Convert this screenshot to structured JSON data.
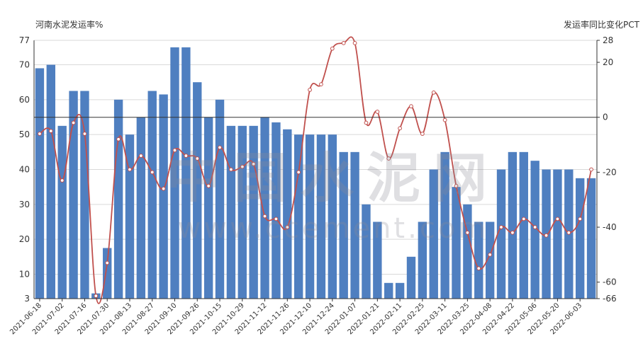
{
  "chart_data": {
    "type": "bar",
    "left_axis_title": "河南水泥发运率%",
    "right_axis_title": "发运率同比变化PCT",
    "watermark": "中国水泥网",
    "watermark_sub": "www.ccement.com",
    "y_left": {
      "min": 3,
      "max": 77,
      "ticks": [
        3,
        10,
        20,
        30,
        40,
        50,
        60,
        70,
        77
      ]
    },
    "y_right": {
      "min": -66,
      "max": 28,
      "ticks": [
        -66,
        -60,
        -40,
        -20,
        0,
        20,
        28
      ]
    },
    "x_tick_labels": [
      "2021-06-18",
      "2021-07-02",
      "2021-07-16",
      "2021-07-30",
      "2021-08-13",
      "2021-08-27",
      "2021-09-10",
      "2021-09-26",
      "2021-10-15",
      "2021-10-29",
      "2021-11-12",
      "2021-11-26",
      "2021-12-10",
      "2021-12-24",
      "2022-01-07",
      "2022-01-21",
      "2022-02-11",
      "2022-02-25",
      "2022-03-11",
      "2022-03-25",
      "2022-04-08",
      "2022-04-22",
      "2022-05-06",
      "2022-05-20",
      "2022-06-03"
    ],
    "categories": [
      "2021-06-18",
      "2021-06-25",
      "2021-07-02",
      "2021-07-09",
      "2021-07-16",
      "2021-07-23",
      "2021-07-30",
      "2021-08-06",
      "2021-08-13",
      "2021-08-20",
      "2021-08-27",
      "2021-09-03",
      "2021-09-10",
      "2021-09-17",
      "2021-09-26",
      "2021-10-08",
      "2021-10-15",
      "2021-10-22",
      "2021-10-29",
      "2021-11-05",
      "2021-11-12",
      "2021-11-19",
      "2021-11-26",
      "2021-12-03",
      "2021-12-10",
      "2021-12-17",
      "2021-12-24",
      "2021-12-31",
      "2022-01-07",
      "2022-01-14",
      "2022-01-21",
      "2022-01-28",
      "2022-02-11",
      "2022-02-18",
      "2022-02-25",
      "2022-03-04",
      "2022-03-11",
      "2022-03-18",
      "2022-03-25",
      "2022-04-01",
      "2022-04-08",
      "2022-04-15",
      "2022-04-22",
      "2022-04-29",
      "2022-05-06",
      "2022-05-13",
      "2022-05-20",
      "2022-05-27",
      "2022-06-03",
      "2022-06-10"
    ],
    "series": [
      {
        "axis": "left",
        "type": "bar",
        "color": "#4f7fc0",
        "values": [
          69,
          70,
          52.5,
          62.5,
          62.5,
          4.5,
          17.5,
          60,
          50,
          55,
          62.5,
          61.5,
          75,
          75,
          65,
          55,
          60,
          52.5,
          52.5,
          52.5,
          55,
          53.5,
          51.5,
          50,
          50,
          50,
          50,
          45,
          45,
          30,
          25,
          7.5,
          7.5,
          15,
          25,
          40,
          45,
          35,
          30,
          25,
          25,
          40,
          45,
          45,
          42.5,
          40,
          40,
          40,
          37.5,
          37.5
        ]
      },
      {
        "axis": "right",
        "type": "line",
        "color": "#c0504d",
        "values": [
          -6,
          -5,
          -23,
          -2,
          -6,
          -65,
          -53,
          -8,
          -19,
          -14,
          -20,
          -26,
          -12,
          -14,
          -15,
          -25,
          -11,
          -19,
          -18,
          -17,
          -36,
          -37,
          -40,
          -20,
          10,
          12,
          25,
          27,
          27,
          -2,
          2,
          -15,
          -4,
          4,
          -6,
          9,
          -1,
          -25,
          -42,
          -55,
          -50,
          -40,
          -42,
          -37,
          -40,
          -43,
          -37,
          -42,
          -37,
          -19
        ]
      }
    ]
  }
}
